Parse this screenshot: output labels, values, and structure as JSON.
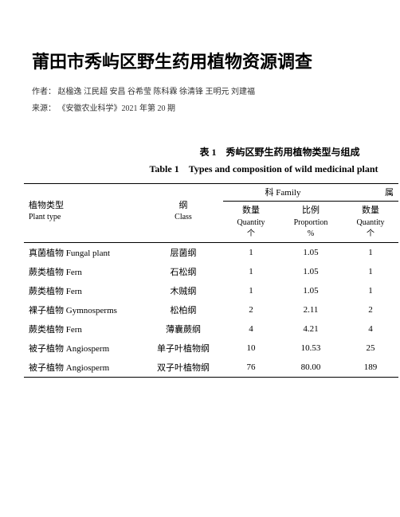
{
  "title": "莆田市秀屿区野生药用植物资源调查",
  "authors_label": "作者：",
  "authors": "赵楹逸 江民超 安昌 谷希莹 陈科霖 徐清锋 王明元 刘建福",
  "source_label": "来源：",
  "source": "《安徽农业科学》2021 年第 20 期",
  "caption_zh": "表 1　秀屿区野生药用植物类型与组成",
  "caption_en": "Table 1　Types and composition of wild medicinal plant",
  "headers": {
    "plant_type_zh": "植物类型",
    "plant_type_en": "Plant type",
    "class_zh": "纲",
    "class_en": "Class",
    "family_group": "科 Family",
    "genus_group": "属",
    "qty_zh": "数量",
    "qty_en": "Quantity",
    "qty_unit": "个",
    "prop_zh": "比例",
    "prop_en": "Proportion",
    "prop_unit": "%"
  },
  "rows": [
    {
      "type": "真菌植物 Fungal plant",
      "class": "层菌纲",
      "fqty": "1",
      "fprop": "1.05",
      "gqty": "1"
    },
    {
      "type": "蕨类植物 Fern",
      "class": "石松纲",
      "fqty": "1",
      "fprop": "1.05",
      "gqty": "1"
    },
    {
      "type": "蕨类植物 Fern",
      "class": "木贼纲",
      "fqty": "1",
      "fprop": "1.05",
      "gqty": "1"
    },
    {
      "type": "裸子植物 Gymnosperms",
      "class": "松柏纲",
      "fqty": "2",
      "fprop": "2.11",
      "gqty": "2"
    },
    {
      "type": "蕨类植物 Fern",
      "class": "薄囊蕨纲",
      "fqty": "4",
      "fprop": "4.21",
      "gqty": "4"
    },
    {
      "type": "被子植物 Angiosperm",
      "class": "单子叶植物纲",
      "fqty": "10",
      "fprop": "10.53",
      "gqty": "25"
    },
    {
      "type": "被子植物 Angiosperm",
      "class": "双子叶植物纲",
      "fqty": "76",
      "fprop": "80.00",
      "gqty": "189"
    }
  ],
  "col_widths": {
    "type": 150,
    "class": 100,
    "fqty": 70,
    "fprop": 80,
    "gqty": 70
  }
}
